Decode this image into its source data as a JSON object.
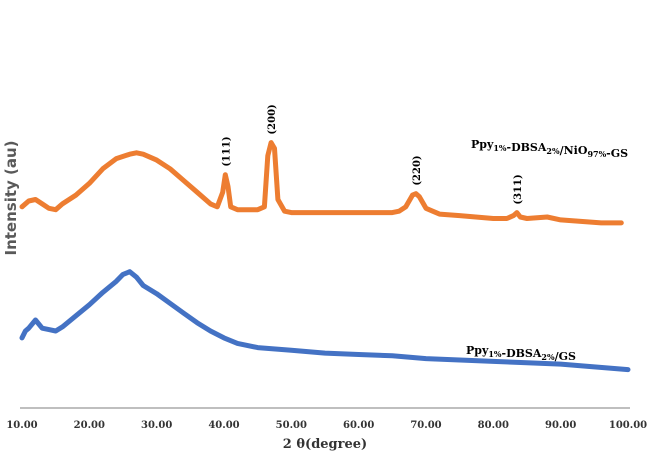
{
  "chart_data": {
    "type": "line",
    "title": "",
    "xlabel": "2 θ(degree)",
    "ylabel": "Intensity (au)",
    "xlim": [
      10,
      100
    ],
    "x_ticks": [
      "10.00",
      "20.00",
      "30.00",
      "40.00",
      "50.00",
      "60.00",
      "70.00",
      "80.00",
      "90.00",
      "100.00"
    ],
    "y_ticks_shown": false,
    "grid": false,
    "legend": "none",
    "series": [
      {
        "label_parts": [
          {
            "text": "Ppy",
            "sub": false
          },
          {
            "text": "1%",
            "sub": true
          },
          {
            "text": "-DBSA",
            "sub": false
          },
          {
            "text": "2%",
            "sub": true
          },
          {
            "text": "/NiO",
            "sub": false
          },
          {
            "text": "97%",
            "sub": true
          },
          {
            "text": "-GS",
            "sub": false
          }
        ],
        "color": "#ED7D31",
        "points": [
          [
            10,
            0.2
          ],
          [
            11,
            0.24
          ],
          [
            12,
            0.25
          ],
          [
            13,
            0.22
          ],
          [
            14,
            0.19
          ],
          [
            15,
            0.18
          ],
          [
            16,
            0.22
          ],
          [
            18,
            0.28
          ],
          [
            20,
            0.36
          ],
          [
            22,
            0.46
          ],
          [
            24,
            0.53
          ],
          [
            26,
            0.56
          ],
          [
            27,
            0.57
          ],
          [
            28,
            0.56
          ],
          [
            30,
            0.52
          ],
          [
            32,
            0.46
          ],
          [
            34,
            0.38
          ],
          [
            36,
            0.3
          ],
          [
            38,
            0.22
          ],
          [
            39,
            0.2
          ],
          [
            39.8,
            0.3
          ],
          [
            40.2,
            0.42
          ],
          [
            40.6,
            0.34
          ],
          [
            41,
            0.2
          ],
          [
            42,
            0.18
          ],
          [
            44,
            0.18
          ],
          [
            45,
            0.18
          ],
          [
            46,
            0.2
          ],
          [
            46.5,
            0.55
          ],
          [
            47,
            0.64
          ],
          [
            47.5,
            0.6
          ],
          [
            48,
            0.25
          ],
          [
            49,
            0.17
          ],
          [
            50,
            0.16
          ],
          [
            55,
            0.16
          ],
          [
            60,
            0.16
          ],
          [
            65,
            0.16
          ],
          [
            66,
            0.17
          ],
          [
            67,
            0.2
          ],
          [
            68,
            0.28
          ],
          [
            68.5,
            0.29
          ],
          [
            69,
            0.27
          ],
          [
            70,
            0.19
          ],
          [
            71,
            0.17
          ],
          [
            72,
            0.15
          ],
          [
            75,
            0.14
          ],
          [
            80,
            0.12
          ],
          [
            82,
            0.12
          ],
          [
            83,
            0.14
          ],
          [
            83.5,
            0.16
          ],
          [
            84,
            0.13
          ],
          [
            85,
            0.12
          ],
          [
            88,
            0.13
          ],
          [
            90,
            0.11
          ],
          [
            93,
            0.1
          ],
          [
            96,
            0.09
          ],
          [
            99,
            0.09
          ]
        ],
        "peaks": [
          {
            "label": "(111)",
            "x": 40.2,
            "y": 0.42
          },
          {
            "label": "(200)",
            "x": 47,
            "y": 0.64
          },
          {
            "label": "(220)",
            "x": 68.5,
            "y": 0.29
          },
          {
            "label": "(311)",
            "x": 83.5,
            "y": 0.16
          }
        ]
      },
      {
        "label_parts": [
          {
            "text": "Ppy",
            "sub": false
          },
          {
            "text": "1%",
            "sub": true
          },
          {
            "text": "-DBSA",
            "sub": false
          },
          {
            "text": "2%",
            "sub": true
          },
          {
            "text": "/GS",
            "sub": false
          }
        ],
        "color": "#4472C4",
        "points": [
          [
            10,
            0.45
          ],
          [
            10.5,
            0.5
          ],
          [
            11,
            0.52
          ],
          [
            12,
            0.58
          ],
          [
            13,
            0.52
          ],
          [
            14,
            0.51
          ],
          [
            15,
            0.5
          ],
          [
            16,
            0.53
          ],
          [
            18,
            0.61
          ],
          [
            20,
            0.69
          ],
          [
            22,
            0.78
          ],
          [
            24,
            0.86
          ],
          [
            25,
            0.91
          ],
          [
            26,
            0.93
          ],
          [
            27,
            0.89
          ],
          [
            28,
            0.83
          ],
          [
            30,
            0.77
          ],
          [
            32,
            0.7
          ],
          [
            34,
            0.63
          ],
          [
            36,
            0.56
          ],
          [
            38,
            0.5
          ],
          [
            40,
            0.45
          ],
          [
            42,
            0.41
          ],
          [
            45,
            0.38
          ],
          [
            50,
            0.36
          ],
          [
            55,
            0.34
          ],
          [
            60,
            0.33
          ],
          [
            65,
            0.32
          ],
          [
            70,
            0.3
          ],
          [
            75,
            0.29
          ],
          [
            80,
            0.28
          ],
          [
            85,
            0.27
          ],
          [
            90,
            0.26
          ],
          [
            95,
            0.24
          ],
          [
            100,
            0.22
          ]
        ]
      }
    ]
  }
}
